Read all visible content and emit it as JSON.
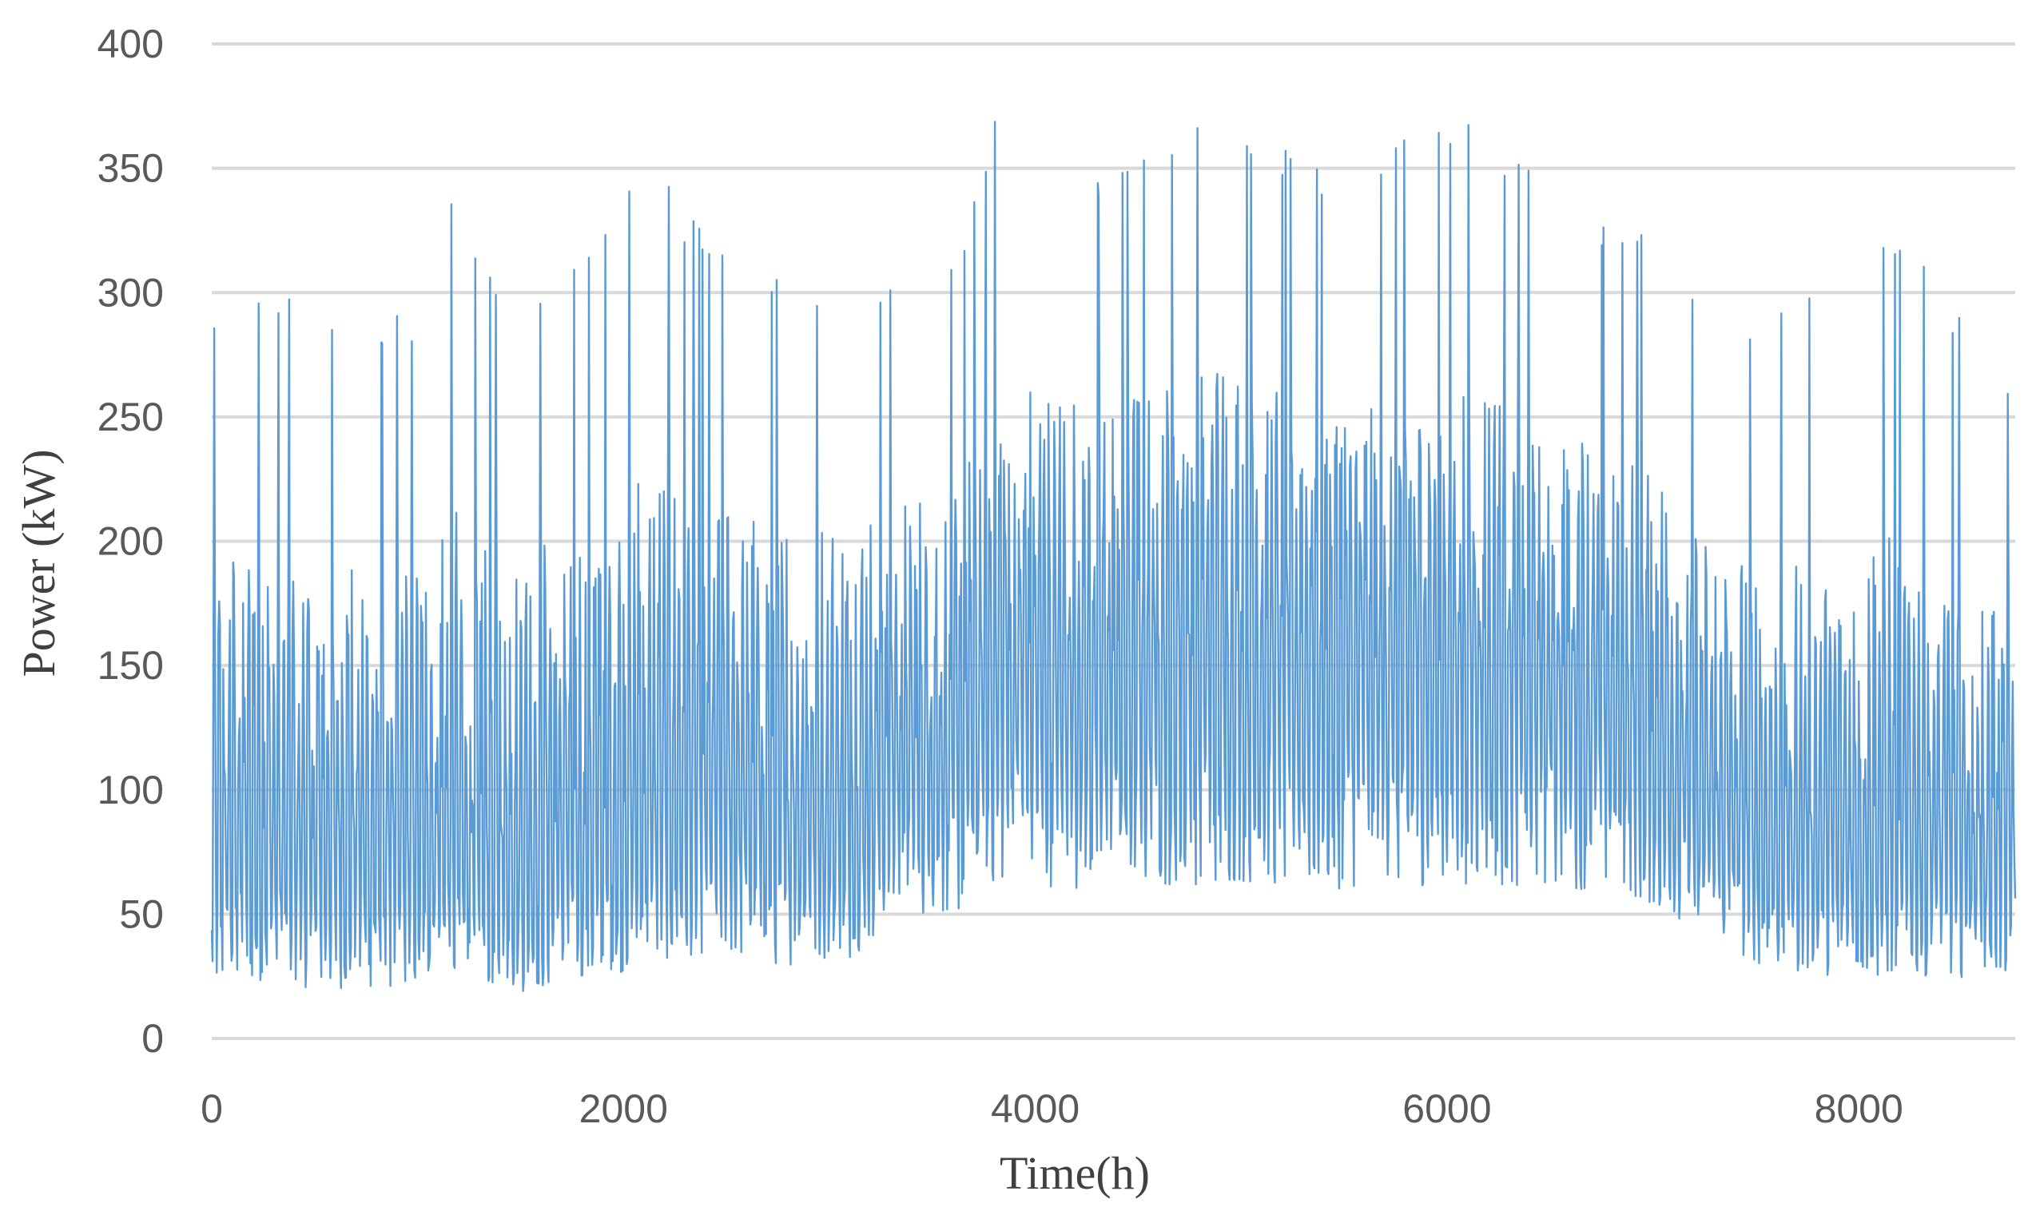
{
  "chart_data": {
    "type": "line",
    "title": "",
    "xlabel": "Time(h)",
    "ylabel": "Power (kW)",
    "xlim": [
      0,
      8760
    ],
    "ylim": [
      0,
      400
    ],
    "x_ticks": [
      0,
      2000,
      4000,
      6000,
      8000
    ],
    "y_ticks": [
      0,
      50,
      100,
      150,
      200,
      250,
      300,
      350,
      400
    ],
    "grid": "horizontal",
    "legend": "none",
    "series_color": "#5b9bd5",
    "series": [
      {
        "values_description_free": true,
        "envelope_x": [
          0,
          200,
          500,
          800,
          1000,
          1100,
          1400,
          1800,
          2100,
          2450,
          2800,
          3150,
          3300,
          3600,
          3800,
          4300,
          4900,
          5400,
          6100,
          6600,
          6850,
          7000,
          7200,
          7500,
          7700,
          8000,
          8150,
          8760
        ],
        "envelope_min": [
          20,
          22,
          20,
          20,
          20,
          22,
          18,
          20,
          30,
          35,
          28,
          32,
          50,
          48,
          62,
          60,
          62,
          60,
          62,
          60,
          60,
          52,
          45,
          30,
          26,
          25,
          24,
          25
        ],
        "envelope_max": [
          285,
          310,
          290,
          295,
          290,
          348,
          300,
          320,
          355,
          320,
          310,
          305,
          305,
          310,
          375,
          350,
          378,
          350,
          372,
          335,
          330,
          336,
          300,
          285,
          300,
          300,
          328,
          265
        ],
        "envelope_median": [
          80,
          85,
          80,
          80,
          80,
          85,
          80,
          85,
          95,
          100,
          95,
          100,
          120,
          118,
          150,
          150,
          155,
          150,
          152,
          145,
          140,
          120,
          100,
          85,
          80,
          80,
          85,
          80
        ],
        "sample_step_h": 4
      }
    ]
  }
}
